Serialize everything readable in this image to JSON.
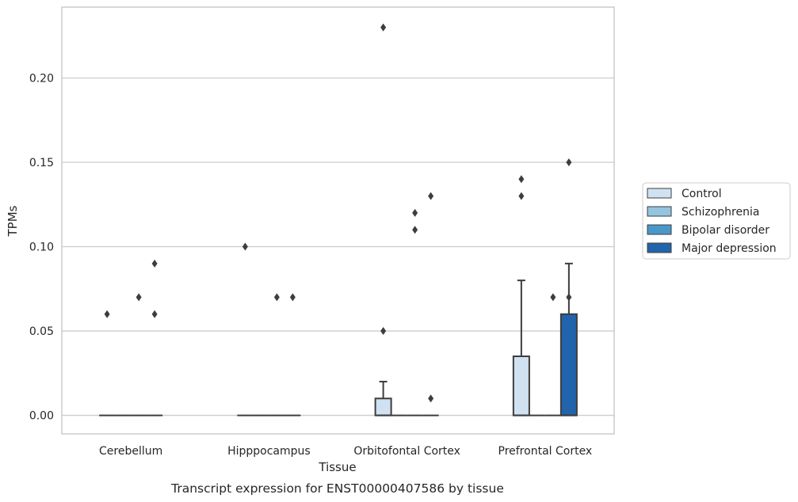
{
  "chart_data": {
    "type": "box",
    "title": "",
    "caption": "Transcript expression for ENST00000407586 by tissue",
    "xlabel": "Tissue",
    "ylabel": "TPMs",
    "ylim": [
      -0.011,
      0.242
    ],
    "yticks": [
      0.0,
      0.05,
      0.1,
      0.15,
      0.2
    ],
    "ytick_labels": [
      "0.00",
      "0.05",
      "0.10",
      "0.15",
      "0.20"
    ],
    "grid": "horizontal",
    "legend_position": "right",
    "categories": [
      "Cerebellum",
      "Hipppocampus",
      "Orbitofontal Cortex",
      "Prefrontal Cortex"
    ],
    "series": [
      {
        "name": "Control",
        "color": "#d0e1f2",
        "boxes": [
          {
            "q1": 0,
            "median": 0,
            "q3": 0,
            "whislo": 0,
            "whishi": 0,
            "fliers": [
              0.06
            ]
          },
          {
            "q1": 0,
            "median": 0,
            "q3": 0,
            "whislo": 0,
            "whishi": 0,
            "fliers": [
              0.1
            ]
          },
          {
            "q1": 0,
            "median": 0,
            "q3": 0.01,
            "whislo": 0,
            "whishi": 0.02,
            "fliers": [
              0.05,
              0.23
            ]
          },
          {
            "q1": 0,
            "median": 0,
            "q3": 0.035,
            "whislo": 0,
            "whishi": 0.08,
            "fliers": [
              0.13,
              0.14
            ]
          }
        ]
      },
      {
        "name": "Schizophrenia",
        "color": "#94c4df",
        "boxes": [
          {
            "q1": 0,
            "median": 0,
            "q3": 0,
            "whislo": 0,
            "whishi": 0,
            "fliers": []
          },
          {
            "q1": 0,
            "median": 0,
            "q3": 0,
            "whislo": 0,
            "whishi": 0,
            "fliers": []
          },
          {
            "q1": 0,
            "median": 0,
            "q3": 0,
            "whislo": 0,
            "whishi": 0,
            "fliers": []
          },
          {
            "q1": 0,
            "median": 0,
            "q3": 0,
            "whislo": 0,
            "whishi": 0,
            "fliers": []
          }
        ]
      },
      {
        "name": "Bipolar disorder",
        "color": "#4a98c9",
        "boxes": [
          {
            "q1": 0,
            "median": 0,
            "q3": 0,
            "whislo": 0,
            "whishi": 0,
            "fliers": [
              0.07
            ]
          },
          {
            "q1": 0,
            "median": 0,
            "q3": 0,
            "whislo": 0,
            "whishi": 0,
            "fliers": [
              0.07
            ]
          },
          {
            "q1": 0,
            "median": 0,
            "q3": 0,
            "whislo": 0,
            "whishi": 0,
            "fliers": [
              0.11,
              0.12
            ]
          },
          {
            "q1": 0,
            "median": 0,
            "q3": 0,
            "whislo": 0,
            "whishi": 0,
            "fliers": [
              0.07
            ]
          }
        ]
      },
      {
        "name": "Major depression",
        "color": "#2164ab",
        "boxes": [
          {
            "q1": 0,
            "median": 0,
            "q3": 0,
            "whislo": 0,
            "whishi": 0,
            "fliers": [
              0.06,
              0.09
            ]
          },
          {
            "q1": 0,
            "median": 0,
            "q3": 0,
            "whislo": 0,
            "whishi": 0,
            "fliers": [
              0.07
            ]
          },
          {
            "q1": 0,
            "median": 0,
            "q3": 0,
            "whislo": 0,
            "whishi": 0,
            "fliers": [
              0.01,
              0.13
            ]
          },
          {
            "q1": 0,
            "median": 0,
            "q3": 0.06,
            "whislo": 0,
            "whishi": 0.09,
            "fliers": [
              0.07,
              0.15
            ]
          }
        ]
      }
    ]
  }
}
